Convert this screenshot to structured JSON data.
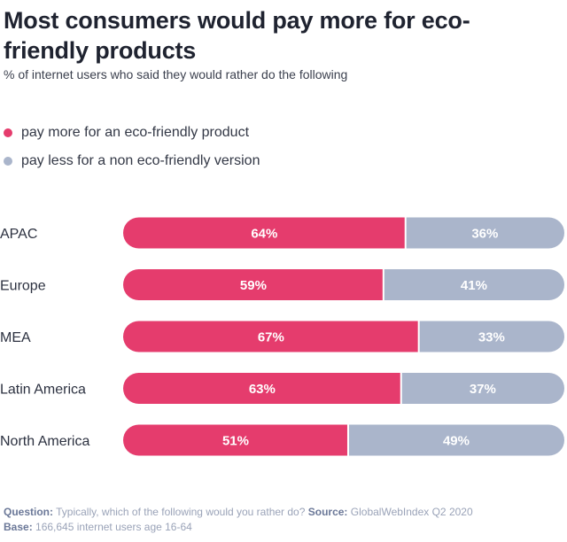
{
  "header": {
    "title": "Most consumers would pay more for eco-friendly products",
    "subtitle": "% of internet users who said they would rather do the following"
  },
  "colors": {
    "pay_more": "#e53c6d",
    "pay_less": "#aab5cb"
  },
  "legend": [
    {
      "label": "pay more for an eco-friendly product",
      "color": "#e53c6d"
    },
    {
      "label": "pay less for a non eco-friendly version",
      "color": "#aab5cb"
    }
  ],
  "chart_data": {
    "type": "bar",
    "orientation": "horizontal",
    "stacked": true,
    "categories": [
      "APAC",
      "Europe",
      "MEA",
      "Latin America",
      "North America"
    ],
    "series": [
      {
        "name": "pay more for an eco-friendly product",
        "values": [
          64,
          59,
          67,
          63,
          51
        ],
        "labels": [
          "64%",
          "59%",
          "67%",
          "63%",
          "51%"
        ]
      },
      {
        "name": "pay less for a non eco-friendly version",
        "values": [
          36,
          41,
          33,
          37,
          49
        ],
        "labels": [
          "36%",
          "41%",
          "33%",
          "37%",
          "49%"
        ]
      }
    ],
    "xlim": [
      0,
      100
    ],
    "grid": false,
    "legend_position": "top-left"
  },
  "footer": {
    "question_label": "Question:",
    "question_text": "Typically, which of the following would you rather do?",
    "source_label": "Source:",
    "source_text": "GlobalWebIndex Q2 2020",
    "base_label": "Base:",
    "base_text": "166,645 internet users age 16-64"
  }
}
